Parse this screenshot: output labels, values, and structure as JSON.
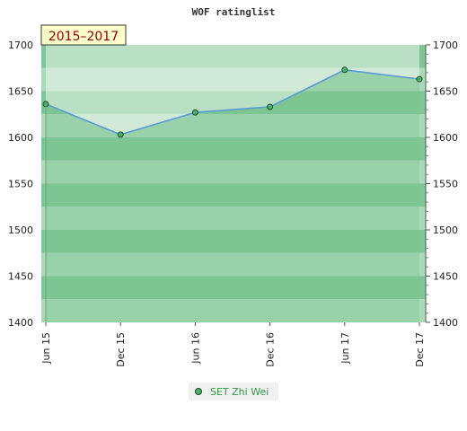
{
  "chart_data": {
    "type": "area",
    "title": "WOF ratinglist",
    "period_badge": "2015–2017",
    "categories": [
      "Jun 15",
      "Dec 15",
      "Jun 16",
      "Dec 16",
      "Jun 17",
      "Dec 17"
    ],
    "series": [
      {
        "name": "SET Zhi Wei",
        "values": [
          1636,
          1603,
          1627,
          1633,
          1673,
          1663
        ]
      }
    ],
    "ylim": [
      1400,
      1700
    ],
    "yticks": [
      1400,
      1450,
      1500,
      1550,
      1600,
      1650,
      1700
    ],
    "xlabel": "",
    "ylabel": "",
    "grid": true,
    "legend": "bottom-center",
    "colors": {
      "line": "#5b9bd5",
      "area": "#7cc495",
      "marker": "#4caf6a",
      "band_dark": "#80c694",
      "band_light": "#a9d9b6",
      "above_area": "#dcefe2",
      "badge_bg": "#ffffcc",
      "badge_text": "#8b0000",
      "legend_text": "#2e9c4a"
    }
  }
}
